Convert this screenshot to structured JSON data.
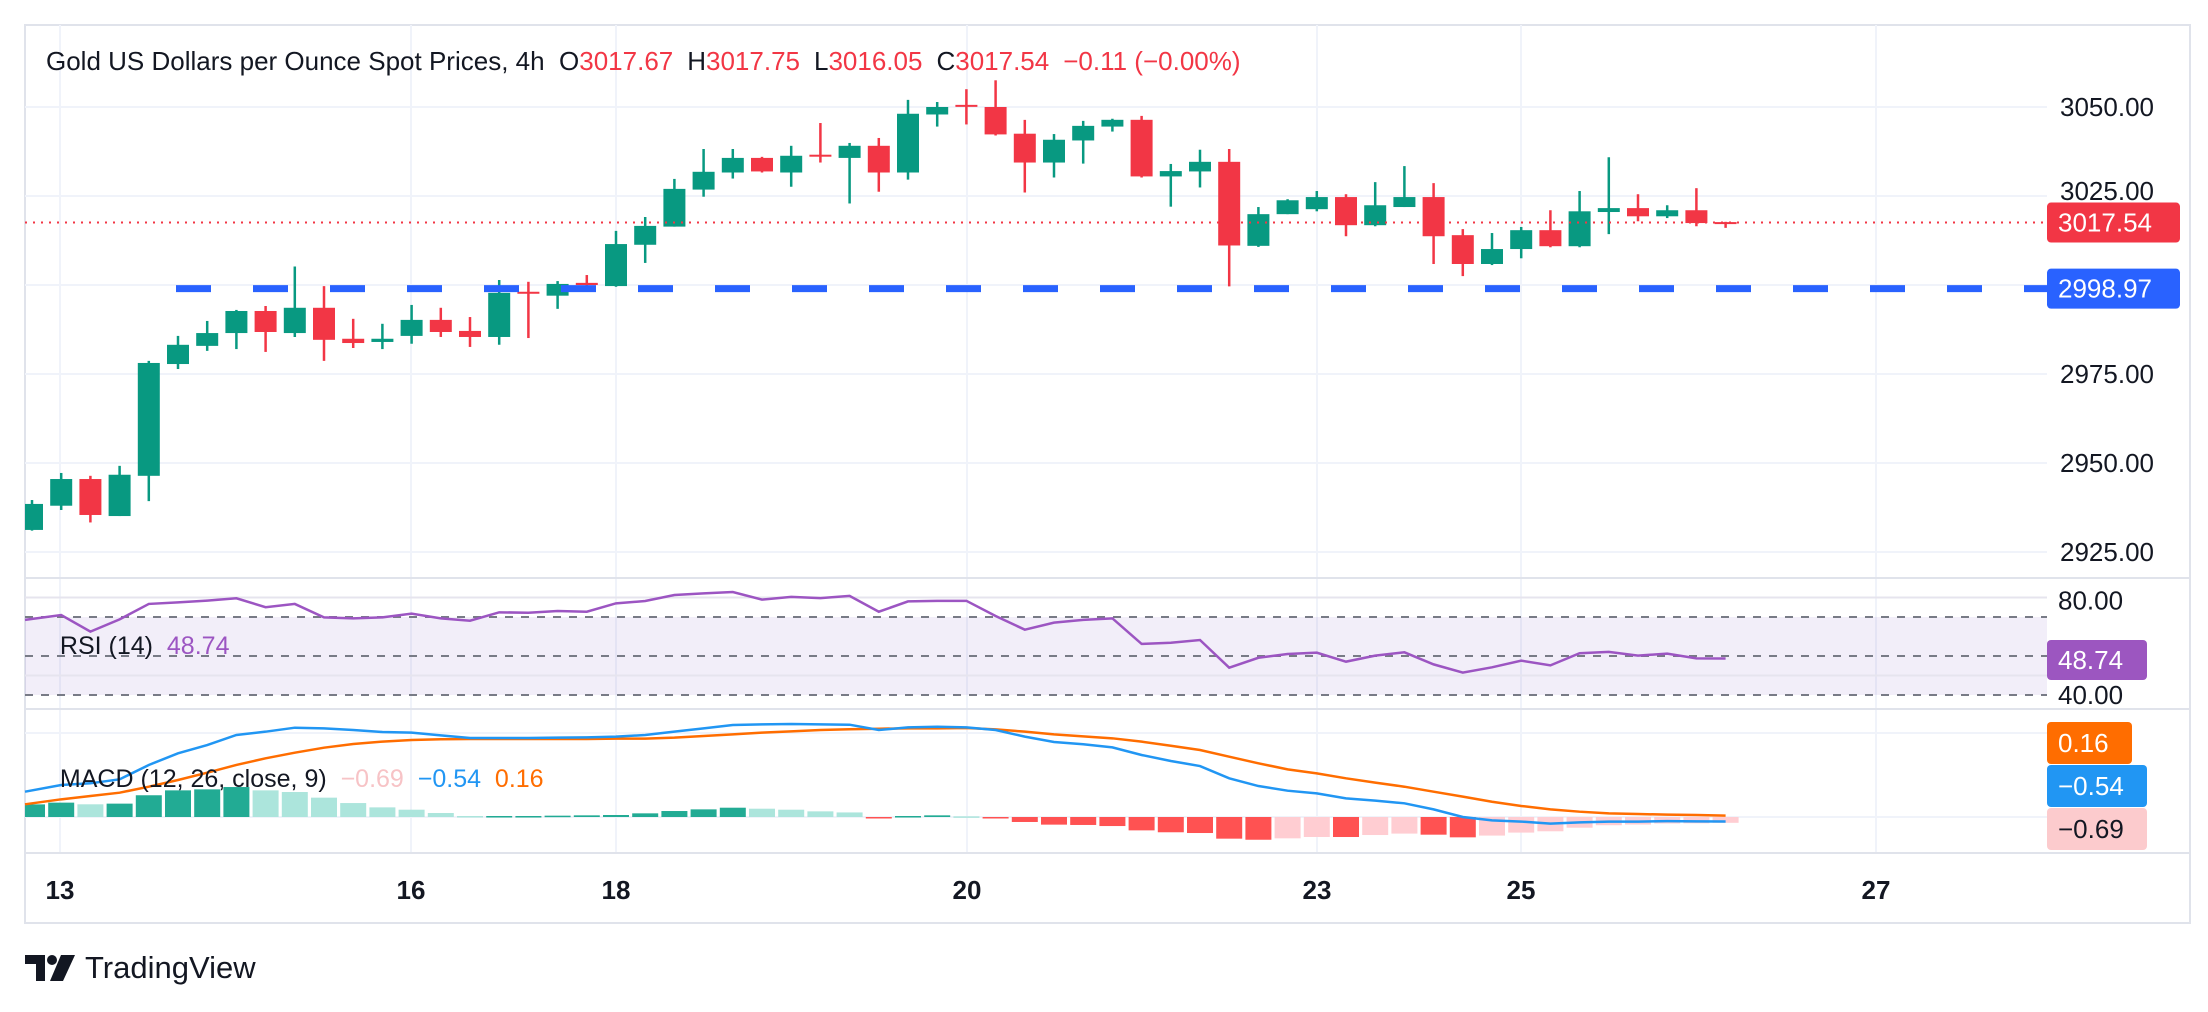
{
  "header": {
    "title": "Gold US Dollars per Ounce Spot Prices, 4h",
    "open_label": "O",
    "open": "3017.67",
    "high_label": "H",
    "high": "3017.75",
    "low_label": "L",
    "low": "3016.05",
    "close_label": "C",
    "close": "3017.54",
    "change": "−0.11 (−0.00%)"
  },
  "price_axis": {
    "ticks": [
      "3050.00",
      "3025.00",
      "2975.00",
      "2950.00",
      "2925.00"
    ],
    "last_price_label": "3017.54",
    "horizontal_line_label": "2998.97"
  },
  "rsi": {
    "label": "RSI (14)",
    "value": "48.74",
    "ticks": [
      "80.00",
      "40.00"
    ],
    "axis_label": "48.74"
  },
  "macd": {
    "label": "MACD (12, 26, close, 9)",
    "histogram_value": "−0.69",
    "macd_value": "−0.54",
    "signal_value": "0.16",
    "axis_signal": "0.16",
    "axis_macd": "−0.54",
    "axis_histogram": "−0.69"
  },
  "time_axis": [
    "13",
    "16",
    "18",
    "20",
    "23",
    "25",
    "27"
  ],
  "logo": "TradingView",
  "colors": {
    "up": "#089981",
    "down": "#f23645",
    "hline": "#2962ff",
    "rsi": "#9c55c2",
    "macd": "#2196f3",
    "signal": "#ff6d00",
    "hist_up_strong": "#22ab94",
    "hist_up_weak": "#ace5dc",
    "hist_down_strong": "#ff5252",
    "hist_down_weak": "#ffcdd2"
  },
  "chart_data": {
    "type": "candlestick",
    "interval": "4h",
    "ylim": [
      2918,
      3073
    ],
    "grid": true,
    "horizontal_line": 2998.97,
    "last_price": 3017.54,
    "x_tick_labels": [
      "13",
      "16",
      "18",
      "20",
      "23",
      "25",
      "27"
    ],
    "y_tick_values": [
      3050,
      3025,
      2975,
      2950,
      2925
    ],
    "ohlc": [
      [
        2931.2,
        2939.6,
        2931.0,
        2938.5
      ],
      [
        2938.0,
        2947.2,
        2936.8,
        2945.5
      ],
      [
        2945.5,
        2946.4,
        2933.3,
        2935.4
      ],
      [
        2935.1,
        2949.2,
        2935.1,
        2946.7
      ],
      [
        2946.4,
        2978.7,
        2939.3,
        2978.1
      ],
      [
        2977.8,
        2985.7,
        2976.4,
        2983.2
      ],
      [
        2982.9,
        2989.9,
        2981.5,
        2986.5
      ],
      [
        2986.5,
        2993.0,
        2982.0,
        2992.7
      ],
      [
        2992.7,
        2994.1,
        2981.2,
        2986.8
      ],
      [
        2986.5,
        3005.2,
        2985.4,
        2993.6
      ],
      [
        2993.6,
        2999.7,
        2978.7,
        2984.6
      ],
      [
        2984.9,
        2990.5,
        2982.3,
        2983.7
      ],
      [
        2984.0,
        2989.1,
        2982.0,
        2984.9
      ],
      [
        2985.7,
        2994.4,
        2983.5,
        2990.2
      ],
      [
        2990.2,
        2993.6,
        2985.4,
        2986.8
      ],
      [
        2987.1,
        2991.0,
        2982.6,
        2985.4
      ],
      [
        2985.4,
        3001.4,
        2983.2,
        2997.8
      ],
      [
        2998.1,
        3000.9,
        2985.1,
        2997.6
      ],
      [
        2997.0,
        3001.1,
        2993.3,
        3000.3
      ],
      [
        3000.6,
        3002.8,
        2999.7,
        3000.0
      ],
      [
        2999.7,
        3015.2,
        2999.5,
        3011.5
      ],
      [
        3011.3,
        3019.1,
        3006.2,
        3016.6
      ],
      [
        3016.4,
        3029.8,
        3016.4,
        3027.0
      ],
      [
        3026.8,
        3038.2,
        3024.8,
        3031.8
      ],
      [
        3031.6,
        3038.2,
        3029.9,
        3035.7
      ],
      [
        3035.7,
        3036.0,
        3031.6,
        3031.9
      ],
      [
        3031.6,
        3039.1,
        3027.6,
        3036.3
      ],
      [
        3036.6,
        3045.5,
        3034.4,
        3036.1
      ],
      [
        3035.7,
        3039.9,
        3022.9,
        3039.1
      ],
      [
        3039.1,
        3041.3,
        3026.2,
        3031.6
      ],
      [
        3031.6,
        3052.0,
        3029.6,
        3048.1
      ],
      [
        3047.9,
        3051.4,
        3044.5,
        3050.0
      ],
      [
        3050.6,
        3055.0,
        3045.1,
        3050.1
      ],
      [
        3050.0,
        3057.5,
        3042.0,
        3042.3
      ],
      [
        3042.5,
        3046.4,
        3026.0,
        3034.4
      ],
      [
        3034.4,
        3042.4,
        3030.2,
        3040.8
      ],
      [
        3040.6,
        3046.1,
        3034.1,
        3044.7
      ],
      [
        3044.5,
        3046.7,
        3043.1,
        3046.4
      ],
      [
        3046.4,
        3047.5,
        3030.2,
        3030.5
      ],
      [
        3030.5,
        3034.0,
        3022.0,
        3032.0
      ],
      [
        3031.9,
        3038.0,
        3027.4,
        3034.6
      ],
      [
        3034.6,
        3038.2,
        2999.6,
        3011.1
      ],
      [
        3011.0,
        3021.9,
        3010.7,
        3019.9
      ],
      [
        3019.9,
        3024.1,
        3019.9,
        3023.8
      ],
      [
        3021.3,
        3026.4,
        3020.7,
        3024.7
      ],
      [
        3024.7,
        3025.5,
        3013.7,
        3016.8
      ],
      [
        3016.8,
        3028.9,
        3016.5,
        3022.4
      ],
      [
        3021.9,
        3033.4,
        3021.9,
        3024.7
      ],
      [
        3024.7,
        3028.6,
        3005.9,
        3013.7
      ],
      [
        3014.0,
        3015.7,
        3002.5,
        3005.9
      ],
      [
        3005.9,
        3014.6,
        3005.6,
        3010.1
      ],
      [
        3010.1,
        3016.3,
        3007.5,
        3015.4
      ],
      [
        3015.4,
        3021.0,
        3010.6,
        3010.9
      ],
      [
        3010.9,
        3026.4,
        3010.6,
        3020.7
      ],
      [
        3020.5,
        3035.9,
        3014.3,
        3021.6
      ],
      [
        3021.6,
        3025.5,
        3017.9,
        3019.3
      ],
      [
        3019.3,
        3022.4,
        3018.8,
        3021.0
      ],
      [
        3021.0,
        3027.2,
        3016.5,
        3017.4
      ],
      [
        3017.67,
        3017.75,
        3016.05,
        3017.54
      ]
    ],
    "rsi": {
      "period": 14,
      "ylim": [
        26,
        88
      ],
      "bands": [
        70,
        50,
        30
      ],
      "ticks": [
        80,
        40
      ],
      "values": [
        68.5,
        71.0,
        62.5,
        68.8,
        76.7,
        77.5,
        78.4,
        79.6,
        75.0,
        76.7,
        69.8,
        69.3,
        69.8,
        71.7,
        69.3,
        68.1,
        72.4,
        72.2,
        73.1,
        72.7,
        77.0,
        78.2,
        81.3,
        82.1,
        82.8,
        78.9,
        80.3,
        79.7,
        80.8,
        72.7,
        78.0,
        78.3,
        78.3,
        70.5,
        63.5,
        67.1,
        68.5,
        69.3,
        56.2,
        56.8,
        58.2,
        44.0,
        49.1,
        51.0,
        51.7,
        47.1,
        50.2,
        51.9,
        45.7,
        41.5,
        44.2,
        47.6,
        45.2,
        51.4,
        52.1,
        50.2,
        51.2,
        48.8,
        48.74
      ]
    },
    "macd": {
      "params": [
        12,
        26,
        9
      ],
      "macd": [
        3.05,
        3.86,
        4.06,
        4.54,
        6.27,
        7.67,
        8.67,
        9.88,
        10.28,
        10.76,
        10.68,
        10.48,
        10.24,
        10.16,
        9.84,
        9.52,
        9.52,
        9.52,
        9.56,
        9.6,
        9.68,
        9.88,
        10.28,
        10.68,
        11.08,
        11.16,
        11.2,
        11.16,
        11.12,
        10.48,
        10.8,
        10.88,
        10.8,
        10.48,
        9.68,
        9.04,
        8.76,
        8.39,
        7.47,
        6.75,
        6.14,
        4.66,
        3.73,
        3.17,
        2.85,
        2.25,
        1.97,
        1.65,
        0.92,
        0.0,
        -0.4,
        -0.55,
        -0.8,
        -0.65,
        -0.55,
        -0.55,
        -0.5,
        -0.52,
        -0.54
      ],
      "signal": [
        1.53,
        2.13,
        2.53,
        2.93,
        3.65,
        4.46,
        5.34,
        6.27,
        7.07,
        7.75,
        8.35,
        8.8,
        9.08,
        9.28,
        9.36,
        9.4,
        9.4,
        9.4,
        9.4,
        9.4,
        9.44,
        9.44,
        9.56,
        9.76,
        9.96,
        10.16,
        10.32,
        10.48,
        10.57,
        10.64,
        10.68,
        10.68,
        10.72,
        10.56,
        10.28,
        9.96,
        9.72,
        9.48,
        9.08,
        8.59,
        8.07,
        7.27,
        6.47,
        5.74,
        5.26,
        4.66,
        4.14,
        3.65,
        3.05,
        2.45,
        1.84,
        1.33,
        0.92,
        0.64,
        0.44,
        0.36,
        0.28,
        0.24,
        0.16
      ]
    }
  }
}
